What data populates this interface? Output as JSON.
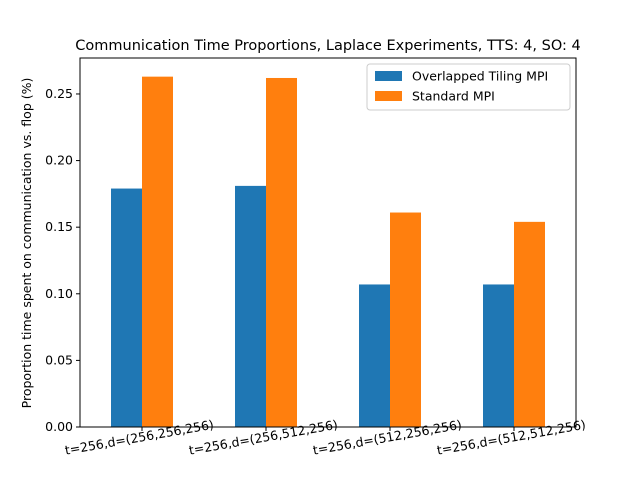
{
  "chart_data": {
    "type": "bar",
    "title": "Communication Time Proportions, Laplace Experiments, TTS: 4, SO: 4",
    "xlabel": "",
    "ylabel": "Proportion time spent on communication vs. flop (%)",
    "categories": [
      "t=256,d=(256,256,256)",
      "t=256,d=(256,512,256)",
      "t=256,d=(512,256,256)",
      "t=256,d=(512,512,256)"
    ],
    "series": [
      {
        "name": "Overlapped Tiling MPI",
        "values": [
          0.179,
          0.181,
          0.107,
          0.107
        ],
        "color": "#1f77b4"
      },
      {
        "name": "Standard MPI",
        "values": [
          0.263,
          0.262,
          0.161,
          0.154
        ],
        "color": "#ff7f0e"
      }
    ],
    "ylim": [
      0,
      0.277
    ],
    "yticks": [
      "0.00",
      "0.05",
      "0.10",
      "0.15",
      "0.20",
      "0.25"
    ],
    "grid": false,
    "legend_position": "top-right"
  }
}
